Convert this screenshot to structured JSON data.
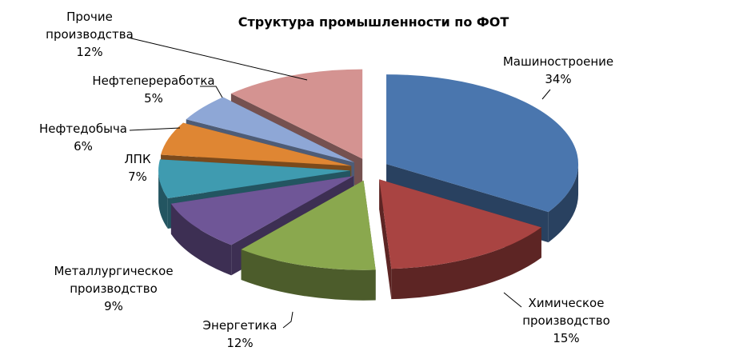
{
  "chart_data": {
    "type": "pie",
    "title": "Структура промышленности по ФОТ",
    "categories": [
      "Машиностроение",
      "Химическое производство",
      "Энергетика",
      "Металлургическое производство",
      "ЛПК",
      "Нефтедобыча",
      "Нефтепереработка",
      "Прочие производства"
    ],
    "values": [
      34,
      15,
      12,
      9,
      7,
      6,
      5,
      12
    ],
    "value_labels": [
      "34%",
      "15%",
      "12%",
      "9%",
      "7%",
      "6%",
      "5%",
      "12%"
    ],
    "colors": [
      "#4a76ae",
      "#a94442",
      "#8aa84e",
      "#6f5697",
      "#3f9bb0",
      "#df8633",
      "#8ea7d6",
      "#d49391"
    ]
  }
}
